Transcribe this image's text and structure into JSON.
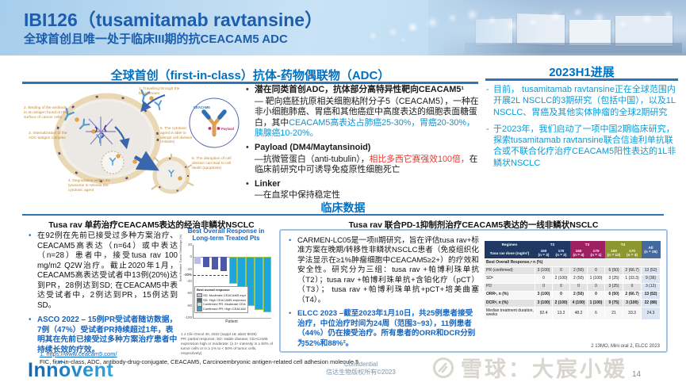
{
  "markers": {
    "dot": "•",
    "dash": "-"
  },
  "header": {
    "title": "IBI126（tusamitamab ravtansine）",
    "subtitle": "全球首创且唯一处于临床III期的抗CEACAM5 ADC"
  },
  "adc_section": {
    "title": "全球首创（first-in-class）抗体-药物偶联物（ADC）",
    "diagram": {
      "labels": [
        "1. Travelling through the bloodstream",
        "2. Binding of the antibody to an antigen found on the surface of cancer cells",
        "3. Internalization of the ADC-antigen complex",
        "4. Degradation within the lysosome to release the cytotoxic agent",
        "5. The cytotoxic agent is able to disrupt cell division (mitosis)",
        "6. The disruption of cell division can lead to cell death (apoptosis)"
      ],
      "inset": {
        "antigen_label": "CEACAM5",
        "payload_label": "Payload"
      }
    },
    "bullets": {
      "b1_head": "潜在同类首创ADC，抗体部分高特异性靶向CEACAM5¹",
      "b1_plain": "— 靶向癌胚抗原相关细胞粘附分子5（CEACAM5），一种在非小细胞肺癌、胃癌和其他癌症中高度表达的细胞表面糖蛋白，其中",
      "b1_highlight": "CEACAM5高表达占肺癌25-30%，胃癌20-30%，胰腺癌10-20%。",
      "b2_head": "Payload (DM4/Maytansinoid)",
      "b2_plain": "—抗微管蛋白（anti-tubulin），",
      "b2_red": "相比多西它赛强效100倍，",
      "b2_tail": "在临床前研究中可诱导免疫原性细胞死亡",
      "b3_head": "Linker",
      "b3_plain": "—在血浆中保持稳定性"
    }
  },
  "progress_section": {
    "title": "2023H1进展",
    "bullets": [
      "目前， tusamitamab ravtansine正在全球范围内开展2L NSCLC的3期研究（包括中国），以及1L NSCLC、胃癌及其他实体肿瘤的全球2期研究",
      "于2023年，我们启动了一项中国2期临床研究，探索tusamitamab ravtansine联合信迪利单抗联合或不联合化疗治疗CEACAM5阳性表达的1L非鳞状NSCLC"
    ]
  },
  "clinical_header": "临床数据",
  "mono_section": {
    "title": "Tusa rav 单药治疗CEACAM5表达的经治非鳞状NSCLC",
    "bullet1": "在92例在先前已接受过多种方案治疗、CEACAM5高表达（n=64）或中表达（n=28）患者中，接受tusa rav 100 mg/m2 Q2W治疗。截止2020年1月，CEACAM5高表达受试者中13例(20%)达到PR，28例达到SD; 在CEACAM5中表达受试者中，2例达到PR，15例达到SD。",
    "bullet2": "ASCO 2022 – 15例PR受试者随访数据，7例（47%）受试者PR持续超过1年，表明其在先前已接受过多种方案治疗患者中持续长效的疗效。",
    "footnote": "1 J Clin Oncol 40, 2022 (suppl 16; abstr 9039)\nPR: partial response; SD: stable disease; CEACAM5 expression high or moderate: (≥ 2+ intensity in ≥ 50% of tumor cells or in ≥ 1% to < 50% of tumor cells, respectively)"
  },
  "chart_data": {
    "type": "bar",
    "title": "Best Overall Response in Long-term Treated Pts",
    "xlabel": "Patient",
    "ylabel": "Best Relative Tumor Shrinkage (%)",
    "ylim": [
      -100,
      20
    ],
    "yticks": [
      20,
      0,
      -20,
      -40,
      -60,
      -80,
      -100
    ],
    "threshold": {
      "y": -30,
      "label": "-30%"
    },
    "legend_title": "Best overall response",
    "series_colors": {
      "sd_moderate": "#b9bee2",
      "sd_high": "#4f58a8",
      "pr_moderate": "#b9e6da",
      "pr_high": "#1ea6dc"
    },
    "legend": [
      "SD: Moderate CEACAM5 expressor",
      "SD: High CEACAM5 expressor",
      "Confirmed PR: Moderate CEACAM5 expressor",
      "Confirmed PR: High CEACAM5 expressor"
    ],
    "bars": [
      {
        "value": -12,
        "series": "sd_moderate"
      },
      {
        "value": -16,
        "series": "sd_high"
      },
      {
        "value": -21,
        "series": "sd_high"
      },
      {
        "value": -23,
        "series": "sd_high"
      },
      {
        "value": -42,
        "series": "pr_high"
      },
      {
        "value": -46,
        "series": "pr_high"
      },
      {
        "value": -78,
        "series": "pr_high"
      },
      {
        "value": -84,
        "series": "pr_high"
      },
      {
        "value": -88,
        "series": "pr_high"
      }
    ]
  },
  "combo_section": {
    "title": "Tusa rav 联合PD-1抑制剂治疗CEACAM5表达的一线非鳞状NSCLC",
    "bullet1": "CARMEN-LC05是一项II期研究，旨在评估tusa rav+标准方案在晚期/转移性非鳞状NSCLC患者（免疫组织化学法显示在≥1%肿瘤细胞中CEACAM5≥2+）的疗效和安全性。研究分为三组：tusa rav +帕博利珠单抗（T2）；tusa rav +帕博利珠单抗+含铂化疗（pCT）（T3）； tusa rav +帕博利珠单抗+pCT+培美曲塞（T4）。",
    "bullet2": "ELCC 2023 –截至2023年1月10日，共25例患者接受治疗，中位治疗时间为24周（范围3~93），11例患者（44%）仍在接受治疗。所有患者的ORR和DCR分别为52%和88%²。",
    "table": {
      "regimen_label": "Regimen",
      "dose_label": "Tusa rav dose (mg/m²)",
      "groups": [
        {
          "label": "T2",
          "color": "#1f3864",
          "cols": [
            "150\n(n = 3)",
            "170\n(n = 2)"
          ]
        },
        {
          "label": "T3",
          "color": "#9e2063",
          "cols": [
            "150\n(n = 4)",
            "170\n(n = 1)"
          ]
        },
        {
          "label": "T4",
          "color": "#8e9630",
          "cols": [
            "150\n(n = 12)",
            "170\n(n = 3)"
          ]
        }
      ],
      "all_label": "All\n(n = 25)",
      "all_color": "#44699f",
      "section_row": "Best Overall Response,ᵃ n (%)",
      "rows": [
        {
          "label": "PR (confirmed)",
          "values": [
            "3 (100)",
            "0",
            "2 (50)",
            "0",
            "6 (50)",
            "2 (66.7)",
            "13 (52)"
          ],
          "bold": false
        },
        {
          "label": "SDᵇ",
          "values": [
            "0",
            "2 (100)",
            "2 (50)",
            "1 (100)",
            "3 (25)",
            "1 (33.3)",
            "9 (36)"
          ],
          "bold": false
        },
        {
          "label": "PD",
          "values": [
            "0",
            "0",
            "0",
            "0",
            "3 (25)",
            "0",
            "3 (12)"
          ],
          "bold": false
        },
        {
          "label": "ORRᶜ, n (%)",
          "values": [
            "3 (100)",
            "0",
            "2 (50)",
            "0",
            "6 (50)",
            "2 (66.7)",
            "13 (52)"
          ],
          "bold": true
        },
        {
          "label": "DCRᵈ, n (%)",
          "values": [
            "3 (100)",
            "2 (100)",
            "4 (100)",
            "1 (100)",
            "9 (75)",
            "3 (100)",
            "22 (88)"
          ],
          "bold": true
        },
        {
          "label": "Median treatment duration, weeks",
          "values": [
            "92.4",
            "13.2",
            "48.2",
            "6",
            "21",
            "33.3",
            "24.3"
          ],
          "bold": false
        }
      ]
    },
    "footnote": "2 13MO, Mini oral 2, ELCC 2023"
  },
  "footer": {
    "ref_link": "1. https://www.ceacam5.com/",
    "abbrev": "FIC, first-in-class, ADC, antibody-drug-conjugate, CEACAM5, Carcinoembryonic antigen-related cell adhesion molecule 5",
    "logo": "Innovent",
    "confidential": "Confidential",
    "copyright": "信达生物版权所有©2023",
    "watermark": "雪球：大宸小媛",
    "page_number": "14"
  }
}
